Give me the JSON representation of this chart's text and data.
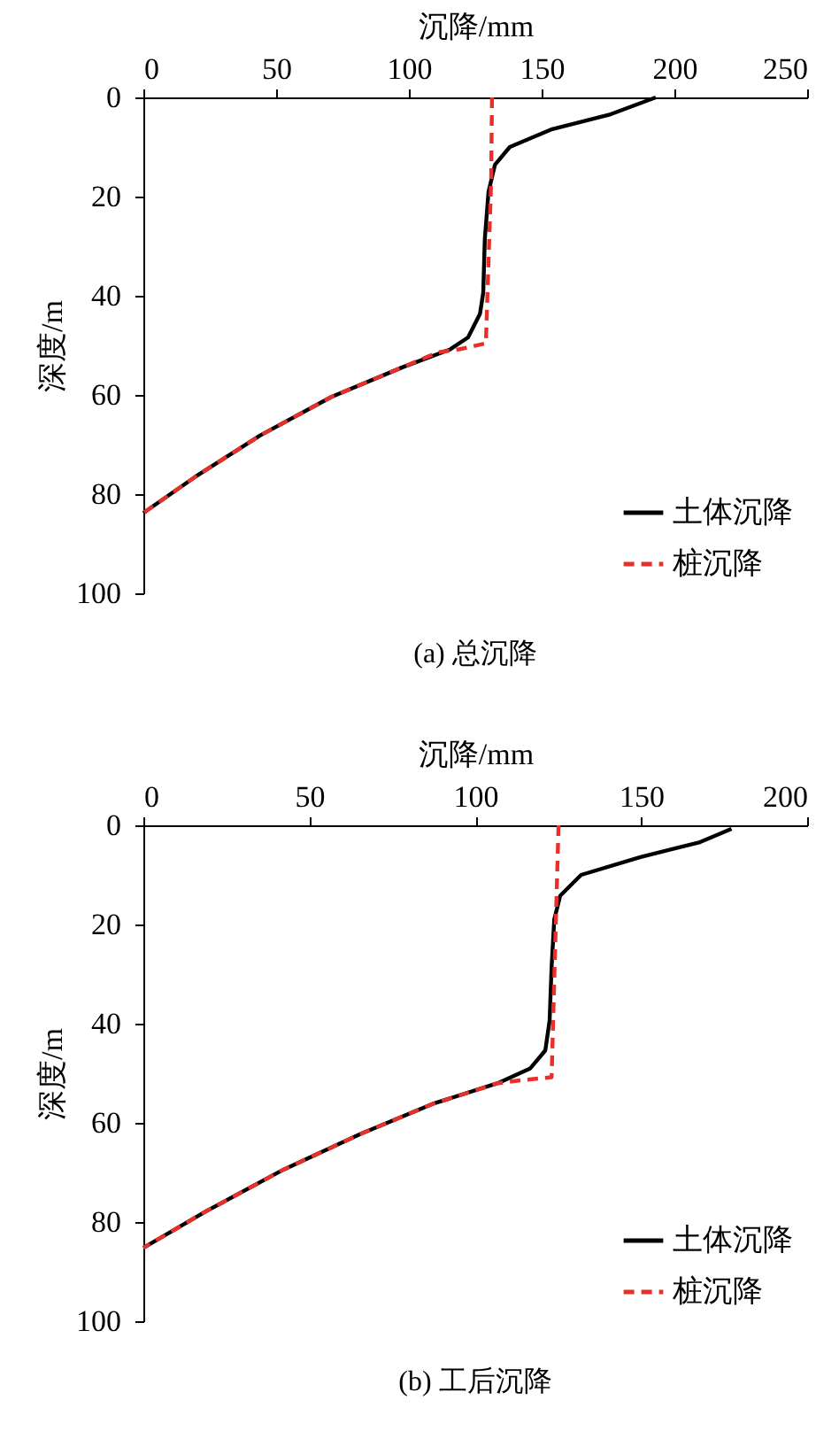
{
  "chart_data": [
    {
      "type": "line",
      "title": "(a) 总沉降",
      "xlabel": "沉降/mm",
      "ylabel": "深度/m",
      "xlim": [
        0,
        250
      ],
      "xticks": [
        0,
        50,
        100,
        150,
        200,
        250
      ],
      "ylim": [
        100,
        0
      ],
      "yticks": [
        0,
        20,
        40,
        60,
        80,
        100
      ],
      "grid": false,
      "legend": "bottom right",
      "series": [
        {
          "name": "土体沉降",
          "color": "#000000",
          "line_style": "solid",
          "x": [
            193,
            176,
            154,
            138,
            132.4,
            130,
            128.6,
            128,
            126.8,
            122.3,
            115.6,
            97.7,
            70.8,
            43.9,
            19.3,
            0
          ],
          "values": [
            0,
            3.4,
            6.4,
            10,
            13.6,
            19,
            28.6,
            39.4,
            43.6,
            48.4,
            50.8,
            54.4,
            60.4,
            68.2,
            76.6,
            83.8
          ]
        },
        {
          "name": "桩沉降",
          "color": "#e8302a",
          "line_style": "dashed",
          "x": [
            131.3,
            131,
            129,
            118.9,
            111,
            97.7,
            70.8,
            43.9,
            19.3,
            0
          ],
          "values": [
            0,
            16.6,
            49.6,
            50.8,
            51.4,
            54.4,
            60.4,
            68.2,
            76.6,
            83.8
          ]
        }
      ]
    },
    {
      "type": "line",
      "title": "(b) 工后沉降",
      "xlabel": "沉降/mm",
      "ylabel": "深度/m",
      "xlim": [
        0,
        200
      ],
      "xticks": [
        0,
        50,
        100,
        150,
        200
      ],
      "ylim": [
        100,
        0
      ],
      "yticks": [
        0,
        20,
        40,
        60,
        80,
        100
      ],
      "grid": false,
      "legend": "bottom right",
      "series": [
        {
          "name": "土体沉降",
          "color": "#000000",
          "line_style": "solid",
          "x": [
            177.2,
            167.7,
            149.8,
            131.9,
            125.6,
            123.8,
            123,
            122.4,
            121.1,
            116.6,
            106.8,
            87.1,
            65.6,
            42.3,
            19,
            0
          ],
          "values": [
            0.7,
            3.4,
            6.4,
            10,
            14.2,
            19,
            28.6,
            39.4,
            45.4,
            49,
            52,
            56.2,
            62.2,
            69.4,
            77.8,
            85.2
          ]
        },
        {
          "name": "桩沉降",
          "color": "#e8302a",
          "line_style": "dashed",
          "x": [
            125.1,
            124.4,
            123,
            114,
            106.8,
            87.1,
            65.6,
            42.3,
            19,
            0
          ],
          "values": [
            0,
            16.6,
            50.8,
            51.4,
            52,
            56.2,
            62.2,
            69.4,
            77.8,
            85.2
          ]
        }
      ]
    }
  ]
}
